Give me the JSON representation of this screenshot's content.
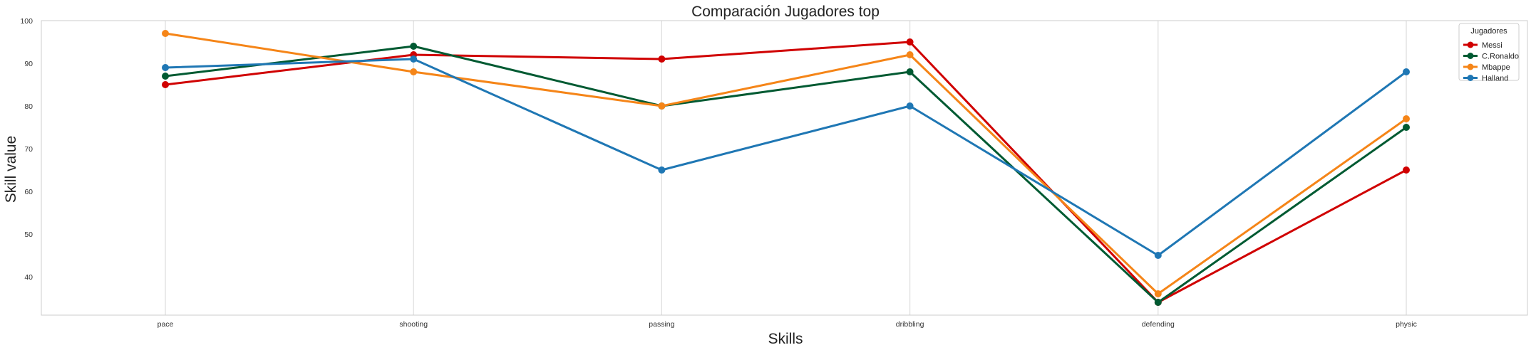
{
  "chart_data": {
    "type": "line",
    "title": "Comparación Jugadores top",
    "xlabel": "Skills",
    "ylabel": "Skill value",
    "categories": [
      "pace",
      "shooting",
      "passing",
      "dribbling",
      "defending",
      "physic"
    ],
    "ylim": [
      31,
      100
    ],
    "yticks": [
      40,
      50,
      60,
      70,
      80,
      90,
      100
    ],
    "grid": "vertical",
    "legend": {
      "title": "Jugadores",
      "placement": "top-right"
    },
    "series": [
      {
        "name": "Messi",
        "color": "#d00000",
        "values": [
          85,
          92,
          91,
          95,
          34,
          65
        ]
      },
      {
        "name": "C.Ronaldo",
        "color": "#005a32",
        "values": [
          87,
          94,
          80,
          88,
          34,
          75
        ]
      },
      {
        "name": "Mbappe",
        "color": "#f58518",
        "values": [
          97,
          88,
          80,
          92,
          36,
          77
        ]
      },
      {
        "name": "Halland",
        "color": "#1f77b4",
        "values": [
          89,
          91,
          65,
          80,
          45,
          88
        ]
      }
    ]
  }
}
